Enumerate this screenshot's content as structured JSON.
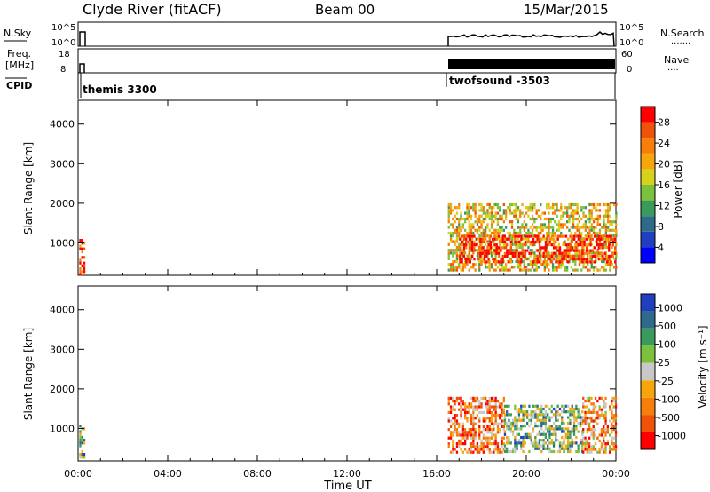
{
  "header": {
    "station": "Clyde River (fitACF)",
    "beam": "Beam 00",
    "date": "15/Mar/2015"
  },
  "status_panels": {
    "nsky_label": "N.Sky",
    "nsearch_label": "N.Search",
    "nsearch_dots": "·······",
    "nsky_ticks": [
      "10^5",
      "10^0"
    ],
    "freq_label_line1": "Freq.",
    "freq_label_line2": "[MHz]",
    "freq_ticks": [
      "18",
      "8"
    ],
    "nave_label": "Nave",
    "nave_dots": "····",
    "nave_ticks": [
      "60",
      "0"
    ],
    "cpid_label": "CPID",
    "cpid_entries": [
      {
        "name": "themis 3300",
        "start_hour": 0.0
      },
      {
        "name": "twofsound -3503",
        "start_hour": 16.5
      }
    ]
  },
  "colors": {
    "power_scale": [
      "#0000ff",
      "#1f3fbf",
      "#2e6b8a",
      "#3a9a5a",
      "#7cc13e",
      "#d6d21a",
      "#f6a60a",
      "#f67e0a",
      "#f0520a",
      "#ff0000"
    ],
    "velocity_scale": [
      "#ff0000",
      "#f0520a",
      "#f67e0a",
      "#f6a60a",
      "#c8c8c8",
      "#7cc13e",
      "#3a9a5a",
      "#2e6b8a",
      "#1f3fbf"
    ]
  },
  "chart_data": [
    {
      "type": "heatmap",
      "name": "power-panel",
      "ylabel": "Slant Range [km]",
      "xlim": [
        0,
        24
      ],
      "ylim": [
        180,
        4600
      ],
      "xticks": [
        "00:00",
        "04:00",
        "08:00",
        "12:00",
        "16:00",
        "20:00",
        "00:00"
      ],
      "yticks": [
        1000,
        2000,
        3000,
        4000
      ],
      "colorbar": {
        "label": "Power [dB]",
        "ticks": [
          "28",
          "24",
          "20",
          "16",
          "12",
          "8",
          "4"
        ],
        "range": [
          0,
          30
        ]
      },
      "data_regions": [
        {
          "time": [
            0.05,
            0.25
          ],
          "range": [
            180,
            1100
          ],
          "value_mean": 26
        },
        {
          "time": [
            16.5,
            24.0
          ],
          "range": [
            300,
            2000
          ],
          "value_mean": 18
        },
        {
          "time": [
            17.0,
            24.0
          ],
          "range": [
            500,
            1200
          ],
          "value_mean": 28
        }
      ]
    },
    {
      "type": "heatmap",
      "name": "velocity-panel",
      "ylabel": "Slant Range [km]",
      "xlabel": "Time UT",
      "xlim": [
        0,
        24
      ],
      "ylim": [
        180,
        4600
      ],
      "xticks": [
        "00:00",
        "04:00",
        "08:00",
        "12:00",
        "16:00",
        "20:00",
        "00:00"
      ],
      "yticks": [
        1000,
        2000,
        3000,
        4000
      ],
      "colorbar": {
        "label": "Velocity [m s⁻¹]",
        "ticks": [
          "1000",
          "500",
          "100",
          "25",
          "-25",
          "-100",
          "-500",
          "-1000"
        ],
        "range": [
          -1200,
          1200
        ]
      },
      "data_regions": [
        {
          "time": [
            0.05,
            0.25
          ],
          "range": [
            180,
            1100
          ],
          "value_mean": 300
        },
        {
          "time": [
            16.5,
            19.0
          ],
          "range": [
            400,
            1800
          ],
          "value_mean": -600
        },
        {
          "time": [
            19.0,
            22.5
          ],
          "range": [
            400,
            1600
          ],
          "value_mean": 300
        },
        {
          "time": [
            22.5,
            24.0
          ],
          "range": [
            400,
            1800
          ],
          "value_mean": -400
        }
      ]
    }
  ]
}
